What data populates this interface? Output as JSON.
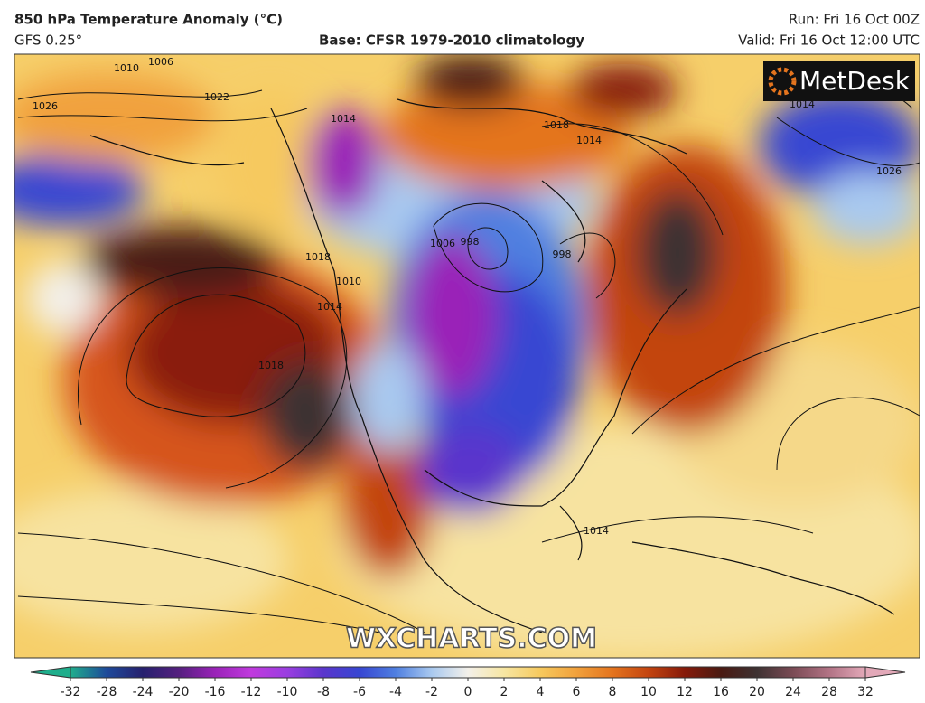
{
  "header": {
    "title": "850 hPa Temperature Anomaly (°C)",
    "model": "GFS 0.25°",
    "base": "Base: CFSR 1979-2010 climatology",
    "run": "Run: Fri 16 Oct 00Z",
    "valid": "Valid: Fri 16 Oct 12:00 UTC"
  },
  "logo": "MetDesk",
  "watermark": "WXCHARTS.COM",
  "isobar_labels": [
    "1010",
    "1006",
    "1026",
    "1022",
    "1018",
    "1014",
    "1018",
    "1014",
    "1018",
    "1010",
    "1014",
    "998",
    "1006",
    "998",
    "1026",
    "1014",
    "1014"
  ],
  "colorbar": {
    "ticks": [
      -32,
      -28,
      -24,
      -20,
      -16,
      -12,
      -10,
      -8,
      -6,
      -4,
      -2,
      0,
      2,
      4,
      6,
      8,
      10,
      12,
      16,
      20,
      24,
      28,
      32
    ],
    "colors": [
      "#1fae8c",
      "#1e4a9a",
      "#26206e",
      "#55207f",
      "#9a22b8",
      "#c03ade",
      "#9a3ee0",
      "#5a36cc",
      "#3746d2",
      "#4f7fe0",
      "#a9c9ef",
      "#f3f0ea",
      "#f7e6a2",
      "#f6c95e",
      "#f1a13c",
      "#e4741e",
      "#c3440f",
      "#861a0a",
      "#4a1a12",
      "#3e3232",
      "#7b4b55",
      "#b27385",
      "#e3a9b9"
    ]
  }
}
